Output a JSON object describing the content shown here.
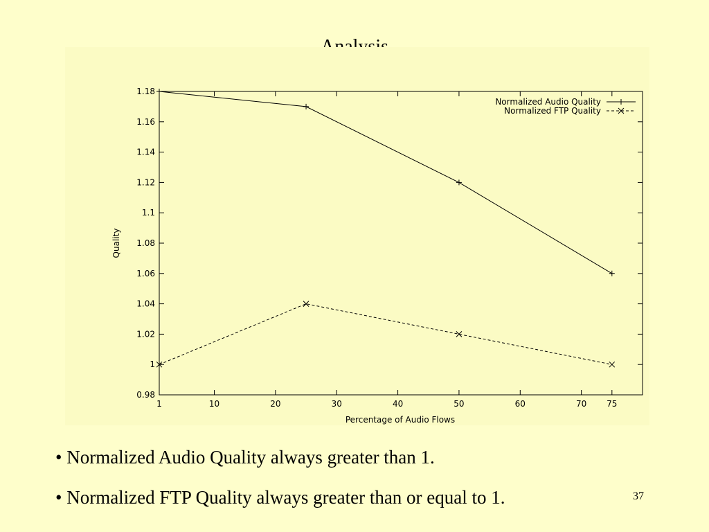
{
  "slide": {
    "title": "Analysis",
    "bullets": [
      "• Normalized Audio Quality always greater than 1.",
      "• Normalized FTP Quality always greater than or equal to 1."
    ],
    "page_number": "37"
  },
  "chart_data": {
    "type": "line",
    "title": "",
    "xlabel": "Percentage of Audio Flows",
    "ylabel": "Quality",
    "x_ticks": [
      1,
      10,
      20,
      30,
      40,
      50,
      60,
      70,
      75
    ],
    "y_ticks": [
      "0.98",
      "1",
      "1.02",
      "1.04",
      "1.06",
      "1.08",
      "1.1",
      "1.12",
      "1.14",
      "1.16",
      "1.18"
    ],
    "xlim": [
      1,
      80
    ],
    "ylim": [
      0.98,
      1.18
    ],
    "grid": false,
    "legend_position": "top-right",
    "series": [
      {
        "name": "Normalized Audio Quality",
        "marker": "plus",
        "line": "solid",
        "x": [
          1,
          25,
          50,
          75
        ],
        "values": [
          1.18,
          1.17,
          1.12,
          1.06
        ]
      },
      {
        "name": "Normalized FTP Quality",
        "marker": "cross",
        "line": "dashed",
        "x": [
          1,
          25,
          50,
          75
        ],
        "values": [
          1.0,
          1.04,
          1.02,
          1.0
        ]
      }
    ]
  }
}
